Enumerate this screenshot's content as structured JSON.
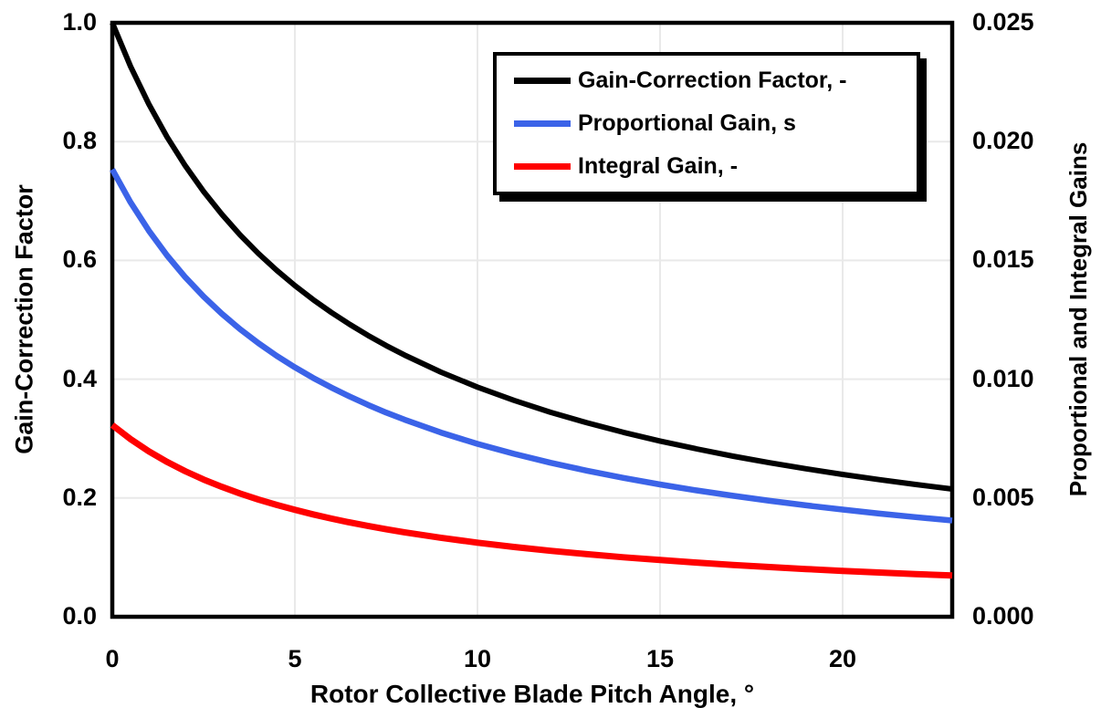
{
  "colors": {
    "background": "#FFFFFF",
    "text": "#000000",
    "grid": "#E9E9E9",
    "plot_border": "#000000"
  },
  "chart_data": {
    "type": "line",
    "title": "",
    "xlabel": "Rotor Collective Blade Pitch Angle, °",
    "ylabel_left": "Gain-Correction Factor",
    "ylabel_right": "Proportional and Integral Gains",
    "xlim": [
      0,
      23
    ],
    "ylim_left": [
      0.0,
      1.0
    ],
    "ylim_right": [
      0.0,
      0.025
    ],
    "grid": true,
    "legend_position": "top-right",
    "x_ticks": [
      {
        "value": 0,
        "label": "0"
      },
      {
        "value": 5,
        "label": "5"
      },
      {
        "value": 10,
        "label": "10"
      },
      {
        "value": 15,
        "label": "15"
      },
      {
        "value": 20,
        "label": "20"
      }
    ],
    "y_ticks_left": [
      {
        "value": 1.0,
        "label": "1.0"
      },
      {
        "value": 0.8,
        "label": "0.8"
      },
      {
        "value": 0.6,
        "label": "0.6"
      },
      {
        "value": 0.4,
        "label": "0.4"
      },
      {
        "value": 0.2,
        "label": "0.2"
      },
      {
        "value": 0.0,
        "label": "0.0"
      }
    ],
    "y_ticks_right": [
      {
        "value": 0.025,
        "label": "0.025"
      },
      {
        "value": 0.02,
        "label": "0.020"
      },
      {
        "value": 0.015,
        "label": "0.015"
      },
      {
        "value": 0.01,
        "label": "0.010"
      },
      {
        "value": 0.005,
        "label": "0.005"
      },
      {
        "value": 0.0,
        "label": "0.000"
      }
    ],
    "x": [
      0,
      0.5,
      1,
      1.5,
      2,
      2.5,
      3,
      3.5,
      4,
      4.5,
      5,
      5.5,
      6,
      6.5,
      7,
      7.5,
      8,
      9,
      10,
      11,
      12,
      13,
      14,
      15,
      16,
      17,
      18,
      19,
      20,
      21,
      22,
      23
    ],
    "series": [
      {
        "name": "Gain-Correction Factor, -",
        "axis": "left",
        "color": "#000000",
        "stroke_width": 6,
        "values": [
          1.0,
          0.9265,
          0.8631,
          0.8077,
          0.7591,
          0.716,
          0.6775,
          0.6429,
          0.6117,
          0.5834,
          0.5576,
          0.534,
          0.5123,
          0.4923,
          0.4738,
          0.4566,
          0.4407,
          0.4119,
          0.3866,
          0.3643,
          0.3443,
          0.3265,
          0.3104,
          0.2959,
          0.2826,
          0.2704,
          0.2593,
          0.2491,
          0.2396,
          0.2308,
          0.2227,
          0.2151
        ]
      },
      {
        "name": "Proportional Gain, s",
        "axis": "right",
        "color": "#3B63E8",
        "stroke_width": 6.5,
        "values": [
          0.018827,
          0.017443,
          0.01625,
          0.015206,
          0.014291,
          0.01348,
          0.012755,
          0.012104,
          0.011516,
          0.010983,
          0.010498,
          0.010053,
          0.009645,
          0.009269,
          0.00892,
          0.008596,
          0.008297,
          0.007755,
          0.007278,
          0.006859,
          0.006482,
          0.006147,
          0.005844,
          0.00557,
          0.00532,
          0.005091,
          0.004882,
          0.00469,
          0.004511,
          0.004345,
          0.004193,
          0.00405
        ]
      },
      {
        "name": "Integral Gain, -",
        "axis": "right",
        "color": "#FF0000",
        "stroke_width": 7,
        "values": [
          0.008069,
          0.007476,
          0.006964,
          0.006517,
          0.006125,
          0.005777,
          0.005467,
          0.005188,
          0.004936,
          0.004707,
          0.004499,
          0.004309,
          0.004134,
          0.003972,
          0.003823,
          0.003684,
          0.003556,
          0.003324,
          0.003119,
          0.002939,
          0.002778,
          0.002634,
          0.002504,
          0.002387,
          0.00228,
          0.002182,
          0.002092,
          0.00201,
          0.001933,
          0.001862,
          0.001797,
          0.001736
        ]
      }
    ]
  }
}
